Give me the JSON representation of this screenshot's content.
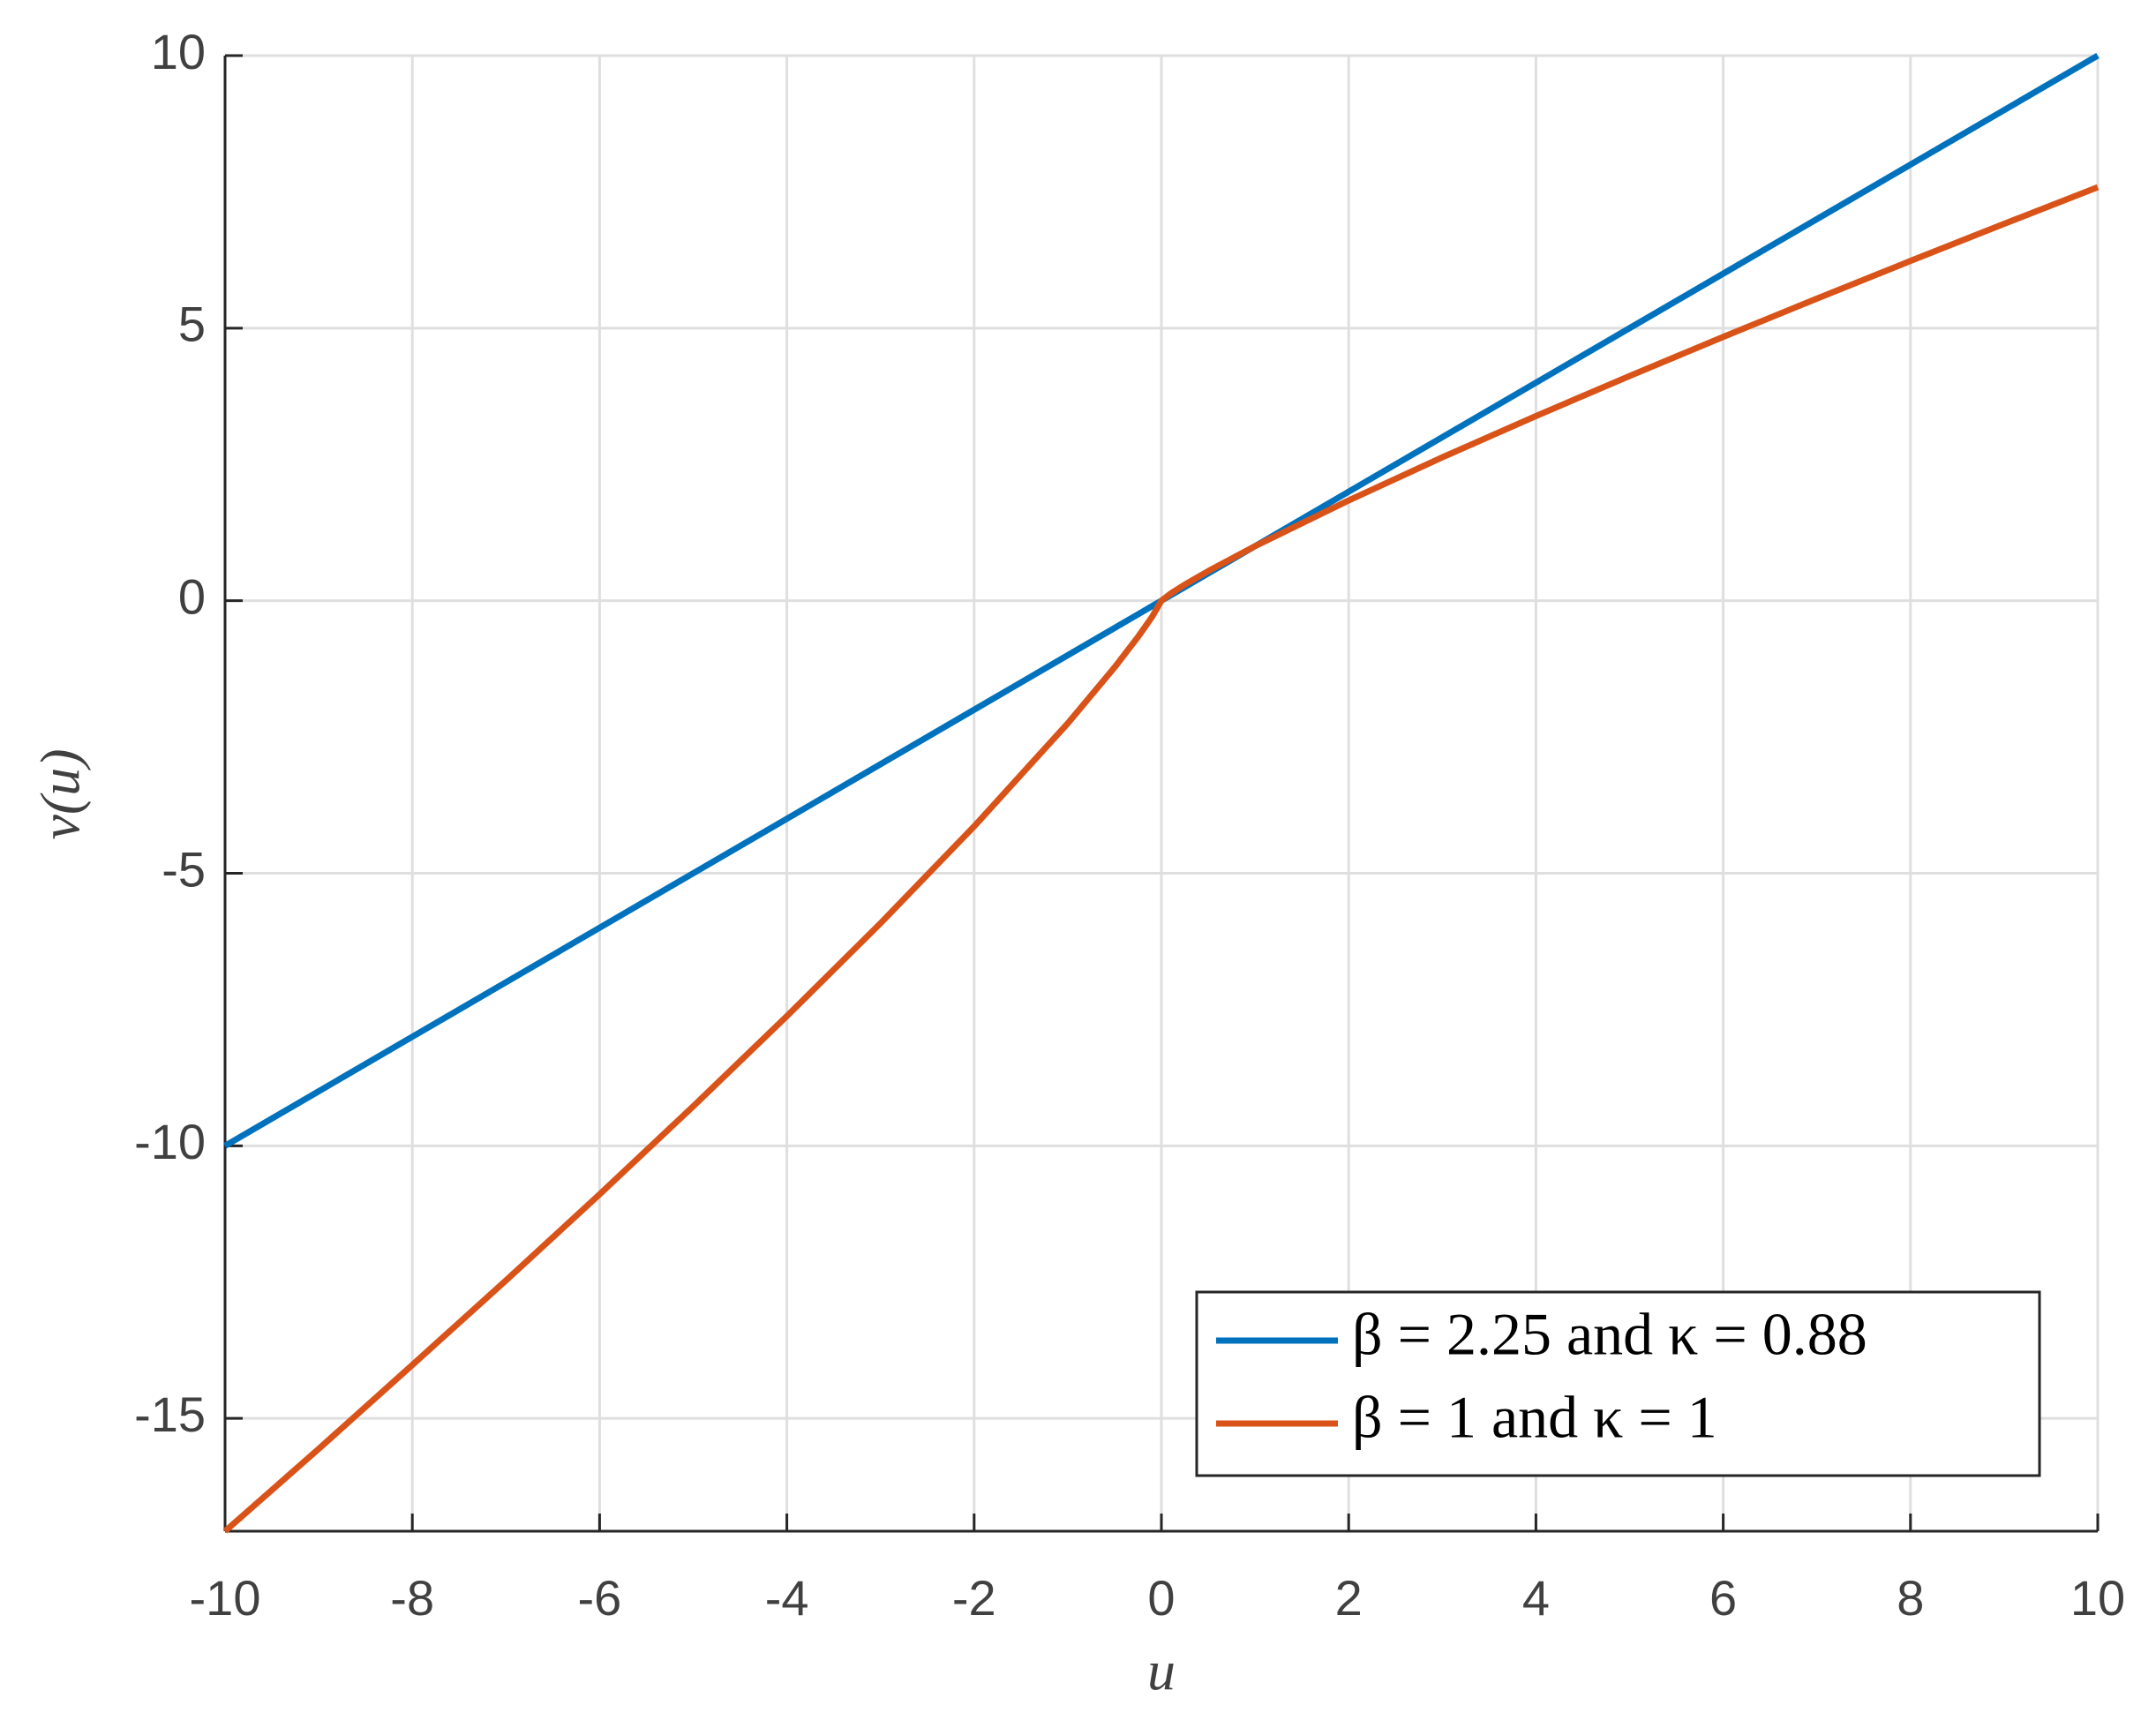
{
  "chart_data": {
    "type": "line",
    "xlabel": "u",
    "ylabel": "v(u)",
    "x": [
      -10,
      -9,
      -8,
      -7,
      -6,
      -5,
      -4,
      -3,
      -2,
      -1,
      -0.5,
      -0.25,
      -0.1,
      0,
      0.1,
      0.25,
      0.5,
      1,
      2,
      3,
      4,
      5,
      6,
      7,
      8,
      9,
      10
    ],
    "series": [
      {
        "name": "β = 2.25 and κ = 0.88",
        "color": "#0072bd",
        "values": [
          -10,
          -9,
          -8,
          -7,
          -6,
          -5,
          -4,
          -3,
          -2,
          -1,
          -0.5,
          -0.25,
          -0.1,
          0,
          0.1,
          0.25,
          0.5,
          1,
          2,
          3,
          4,
          5,
          6,
          7,
          8,
          9,
          10
        ]
      },
      {
        "name": "β = 1 and κ = 1",
        "color": "#d95319",
        "values": [
          -17.07,
          -15.56,
          -14.02,
          -12.47,
          -10.89,
          -9.275,
          -7.621,
          -5.918,
          -4.14,
          -2.25,
          -1.2227,
          -0.6644,
          -0.2966,
          0,
          0.1318,
          0.2953,
          0.5434,
          1,
          1.84,
          2.63,
          3.387,
          4.122,
          4.84,
          5.542,
          6.233,
          6.914,
          7.586
        ]
      }
    ],
    "xlim": [
      -10,
      10
    ],
    "ylim": [
      -17.07,
      10
    ],
    "xticks": [
      -10,
      -8,
      -6,
      -4,
      -2,
      0,
      2,
      4,
      6,
      8,
      10
    ],
    "yticks": [
      -15,
      -10,
      -5,
      0,
      5,
      10
    ],
    "grid": true,
    "legend": "lower right"
  }
}
